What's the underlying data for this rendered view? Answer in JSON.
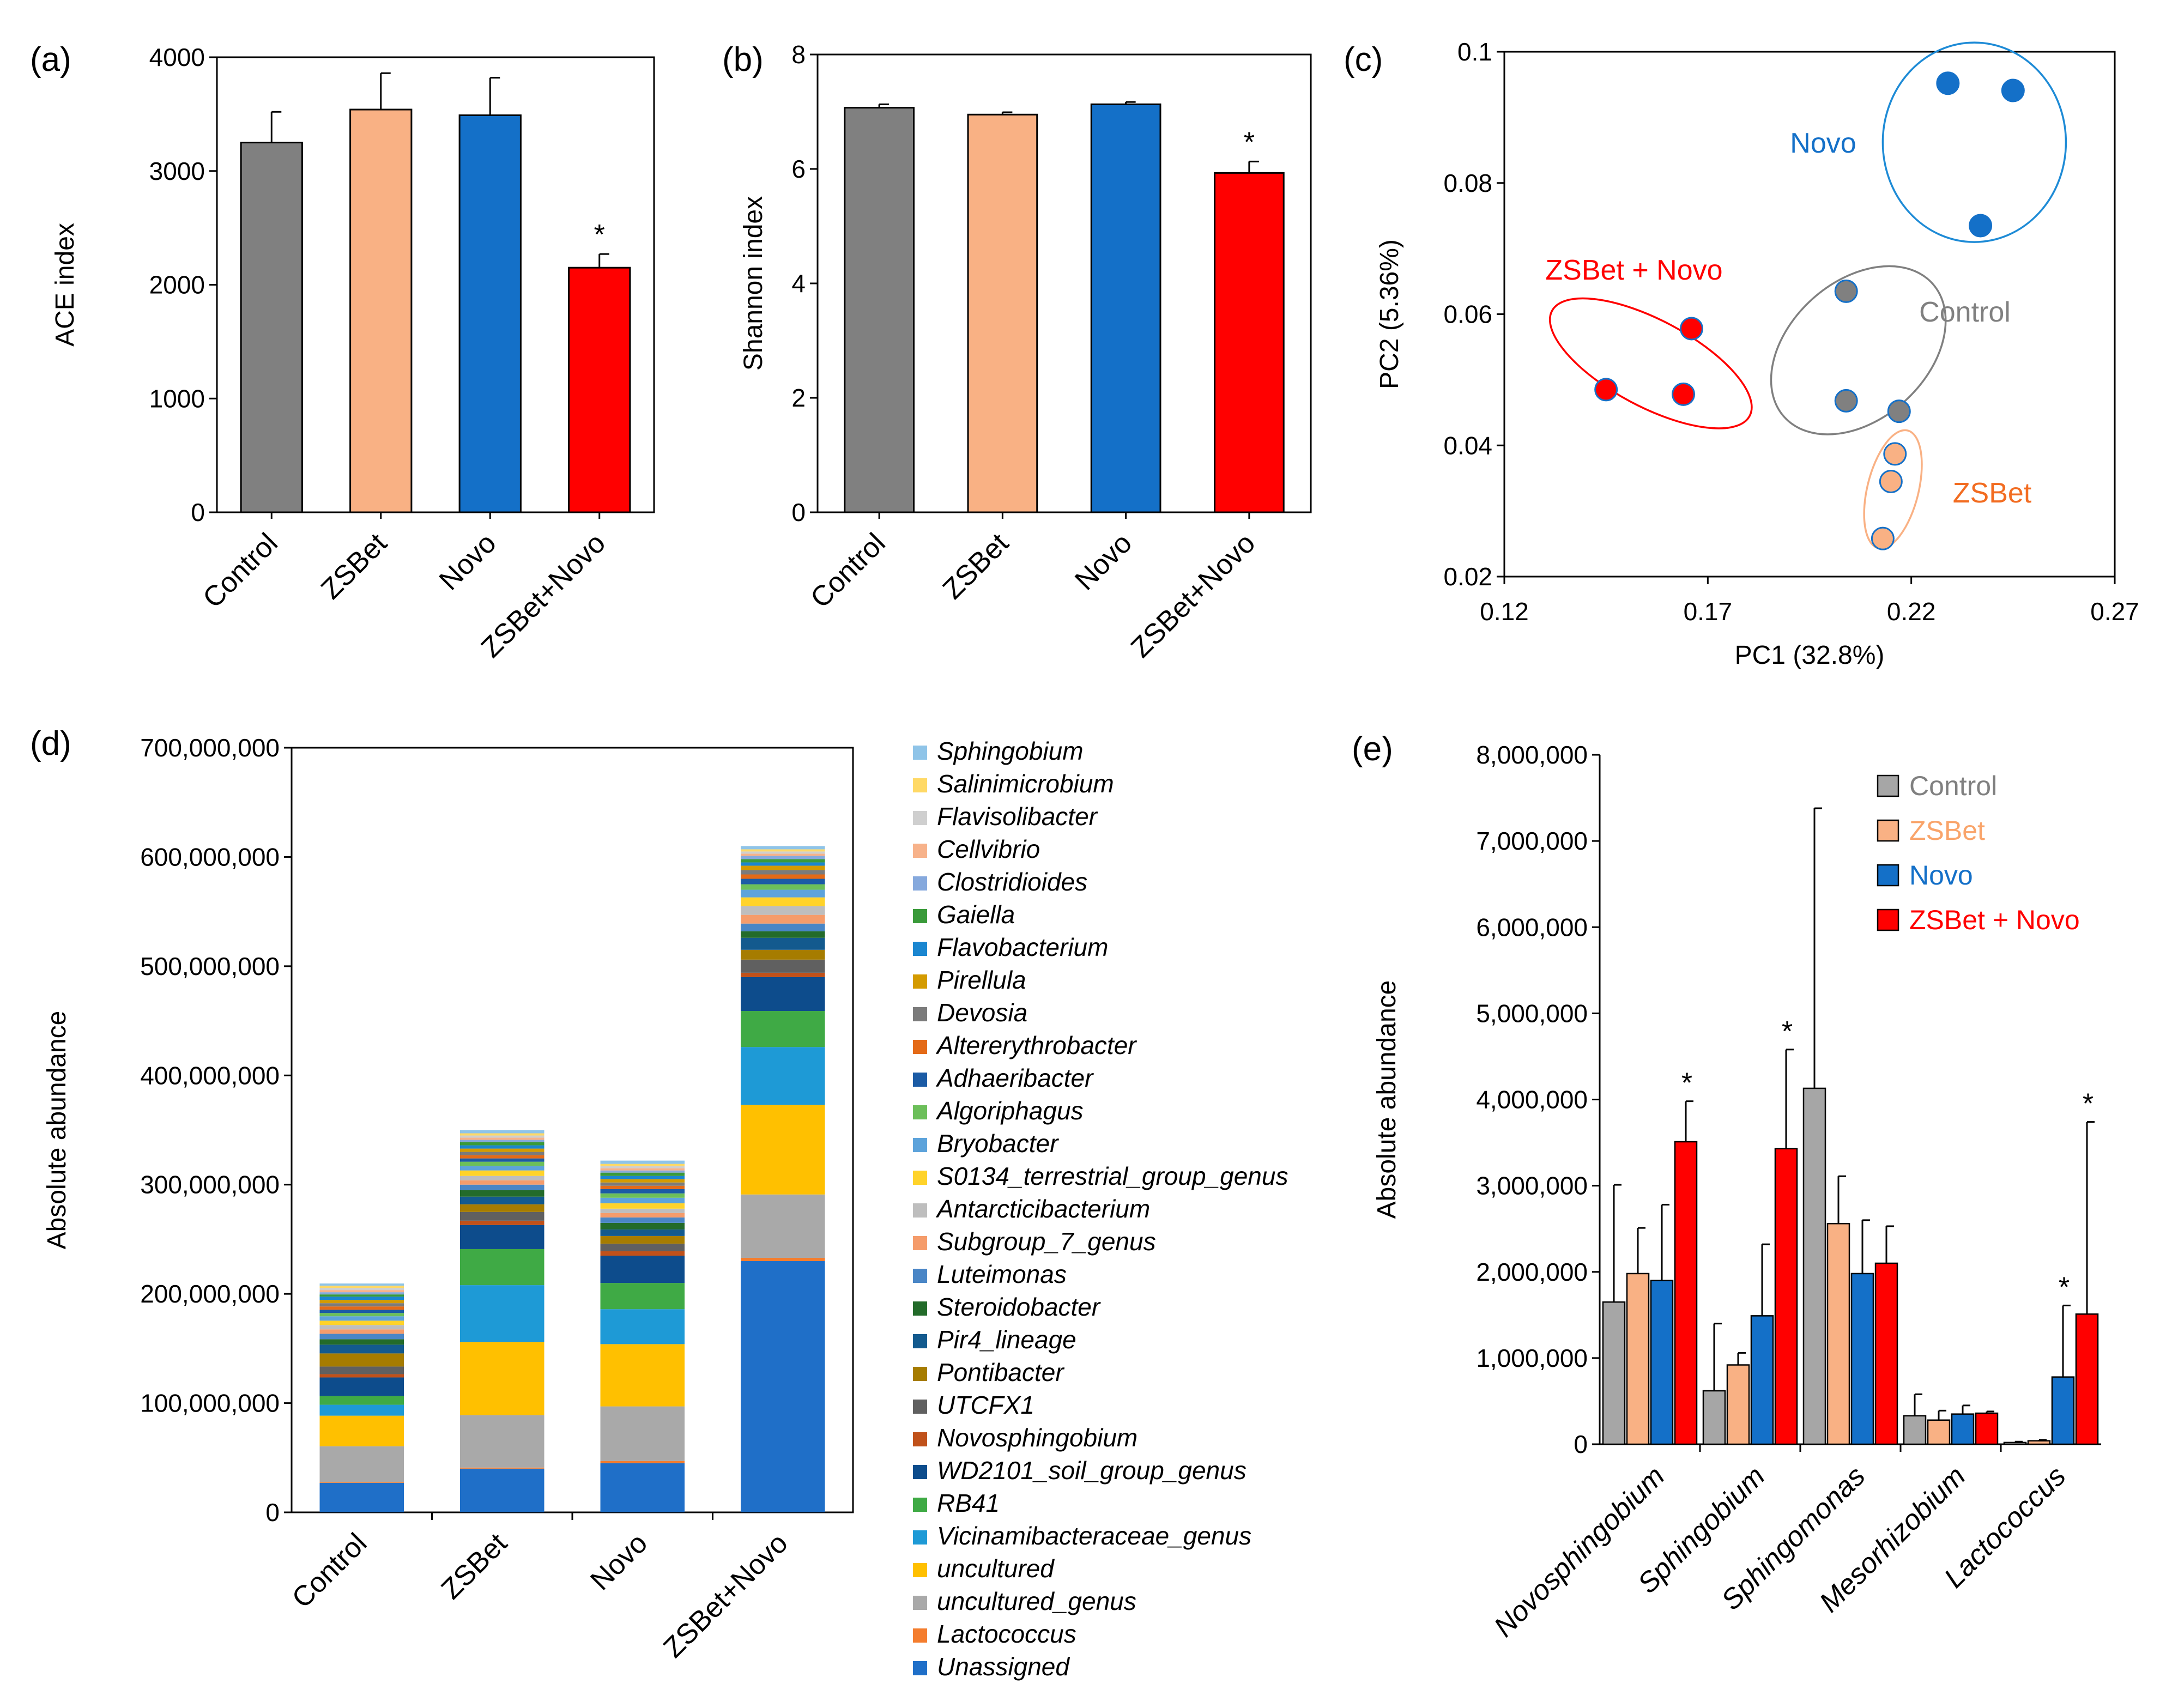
{
  "chart_data": [
    {
      "id": "a",
      "panel_label": "(a)",
      "type": "bar",
      "categories": [
        "Control",
        "ZSBet",
        "Novo",
        "ZSBet+Novo"
      ],
      "values": [
        3250,
        3540,
        3490,
        2150
      ],
      "errors": [
        270,
        320,
        330,
        120
      ],
      "colors": [
        "#808080",
        "#F9B184",
        "#1470C8",
        "#FF0000"
      ],
      "significance": [
        "",
        "",
        "",
        "*"
      ],
      "ylabel": "ACE index",
      "ylim": [
        0,
        4000
      ],
      "yticks": [
        "0",
        "1000",
        "2000",
        "3000",
        "4000"
      ]
    },
    {
      "id": "b",
      "panel_label": "(b)",
      "type": "bar",
      "categories": [
        "Control",
        "ZSBet",
        "Novo",
        "ZSBet+Novo"
      ],
      "values": [
        7.07,
        6.95,
        7.13,
        5.93
      ],
      "errors": [
        0.06,
        0.04,
        0.04,
        0.2
      ],
      "colors": [
        "#808080",
        "#F9B184",
        "#1470C8",
        "#FF0000"
      ],
      "significance": [
        "",
        "",
        "",
        "*"
      ],
      "ylabel": "Shannon index",
      "ylim": [
        0,
        8
      ],
      "yticks": [
        "0",
        "2",
        "4",
        "6",
        "8"
      ]
    },
    {
      "id": "c",
      "panel_label": "(c)",
      "type": "scatter",
      "xlabel": "PC1 (32.8%)",
      "ylabel": "PC2 (5.36%)",
      "xlim": [
        0.12,
        0.27
      ],
      "ylim": [
        0.02,
        0.1
      ],
      "xticks": [
        "0.12",
        "0.17",
        "0.22",
        "0.27"
      ],
      "yticks": [
        "0.02",
        "0.04",
        "0.06",
        "0.08",
        "0.1"
      ],
      "series": [
        {
          "name": "Novo",
          "color": "#1470C8",
          "edge": "#1470C8",
          "points": [
            [
              0.229,
              0.0952
            ],
            [
              0.245,
              0.0941
            ],
            [
              0.237,
              0.0735
            ]
          ],
          "ellipse": {
            "cx": 0.2355,
            "cy": 0.0862,
            "rx": 0.0225,
            "ry": 0.0152,
            "rot": 0
          }
        },
        {
          "name": "Control",
          "color": "#808080",
          "edge": "#1470C8",
          "points": [
            [
              0.204,
              0.0635
            ],
            [
              0.204,
              0.0468
            ],
            [
              0.217,
              0.0452
            ]
          ],
          "ellipse": {
            "cx": 0.207,
            "cy": 0.0545,
            "rx": 0.0245,
            "ry": 0.0105,
            "rot": 42
          }
        },
        {
          "name": "ZSBet",
          "color": "#F9B184",
          "edge": "#1470C8",
          "points": [
            [
              0.216,
              0.0387
            ],
            [
              0.215,
              0.0345
            ],
            [
              0.213,
              0.0258
            ]
          ],
          "ellipse": {
            "cx": 0.2155,
            "cy": 0.0333,
            "rx": 0.0149,
            "ry": 0.0039,
            "rot": 76
          }
        },
        {
          "name": "ZSBet + Novo",
          "color": "#FF0000",
          "edge": "#1470C8",
          "points": [
            [
              0.145,
              0.0485
            ],
            [
              0.164,
              0.0478
            ],
            [
              0.166,
              0.0578
            ]
          ],
          "ellipse": {
            "cx": 0.156,
            "cy": 0.0525,
            "rx": 0.0275,
            "ry": 0.0066,
            "rot": -28
          }
        }
      ]
    },
    {
      "id": "d",
      "panel_label": "(d)",
      "type": "bar",
      "stacked": true,
      "categories": [
        "Control",
        "ZSBet",
        "Novo",
        "ZSBet+Novo"
      ],
      "ylabel": "Absolute abundance",
      "ylim": [
        0,
        700000000
      ],
      "yticks": [
        "0",
        "100,000,000",
        "200,000,000",
        "300,000,000",
        "400,000,000",
        "500,000,000",
        "600,000,000",
        "700,000,000"
      ],
      "series": [
        {
          "name": "Unassigned",
          "color": "#1F6FC8",
          "values": [
            27000000,
            40000000,
            45000000,
            230000000
          ]
        },
        {
          "name": "Lactococcus",
          "color": "#F47D2E",
          "values": [
            500000,
            1000000,
            2000000,
            3000000
          ]
        },
        {
          "name": "uncultured_genus",
          "color": "#A9A9A9",
          "values": [
            33000000,
            48000000,
            50000000,
            58000000
          ]
        },
        {
          "name": "uncultured",
          "color": "#FFC000",
          "values": [
            28000000,
            67000000,
            57000000,
            82000000
          ]
        },
        {
          "name": "Vicinamibacteraceae_genus",
          "color": "#1E9AD6",
          "values": [
            10000000,
            52000000,
            32000000,
            53000000
          ]
        },
        {
          "name": "RB41",
          "color": "#3FAA45",
          "values": [
            8000000,
            33000000,
            24000000,
            33000000
          ]
        },
        {
          "name": "WD2101_soil_group_genus",
          "color": "#0D4C8C",
          "values": [
            17000000,
            22000000,
            25000000,
            31000000
          ]
        },
        {
          "name": "Novosphingobium",
          "color": "#C0511A",
          "values": [
            3000000,
            4000000,
            4000000,
            4000000
          ]
        },
        {
          "name": "UTCFX1",
          "color": "#606060",
          "values": [
            7000000,
            8000000,
            7000000,
            12000000
          ]
        },
        {
          "name": "Pontibacter",
          "color": "#A67C00",
          "values": [
            12000000,
            7000000,
            7000000,
            9000000
          ]
        },
        {
          "name": "Pir4_lineage",
          "color": "#135A8E",
          "values": [
            8000000,
            7000000,
            6000000,
            11000000
          ]
        },
        {
          "name": "Steroidobacter",
          "color": "#236B2A",
          "values": [
            5000000,
            6000000,
            6000000,
            6000000
          ]
        },
        {
          "name": "Luteimonas",
          "color": "#4A86C6",
          "values": [
            5000000,
            5000000,
            5000000,
            7000000
          ]
        },
        {
          "name": "Subgroup_7_genus",
          "color": "#F59C6B",
          "values": [
            4000000,
            4000000,
            4000000,
            8000000
          ]
        },
        {
          "name": "Antarcticibacterium",
          "color": "#BEBEBE",
          "values": [
            4000000,
            4000000,
            4000000,
            8000000
          ]
        },
        {
          "name": "S0134_terrestrial_group_genus",
          "color": "#FFD32A",
          "values": [
            4000000,
            5000000,
            5000000,
            8000000
          ]
        },
        {
          "name": "Bryobacter",
          "color": "#5DA3DB",
          "values": [
            4000000,
            4000000,
            5000000,
            7000000
          ]
        },
        {
          "name": "Algoriphagus",
          "color": "#6CBF5A",
          "values": [
            3000000,
            4000000,
            4000000,
            5000000
          ]
        },
        {
          "name": "Adhaeribacter",
          "color": "#1B5BA5",
          "values": [
            3000000,
            3000000,
            4000000,
            5000000
          ]
        },
        {
          "name": "Altererythrobacter",
          "color": "#E46A17",
          "values": [
            3000000,
            3000000,
            3000000,
            4000000
          ]
        },
        {
          "name": "Devosia",
          "color": "#7B7B7B",
          "values": [
            3000000,
            3000000,
            3000000,
            4000000
          ]
        },
        {
          "name": "Pirellula",
          "color": "#D49B00",
          "values": [
            3000000,
            3000000,
            3000000,
            4000000
          ]
        },
        {
          "name": "Flavobacterium",
          "color": "#1A86D0",
          "values": [
            3000000,
            3000000,
            3000000,
            3000000
          ]
        },
        {
          "name": "Gaiella",
          "color": "#3A9A3A",
          "values": [
            2000000,
            3000000,
            3000000,
            3000000
          ]
        },
        {
          "name": "Clostridioides",
          "color": "#86A9DD",
          "values": [
            2000000,
            2000000,
            2000000,
            3000000
          ]
        },
        {
          "name": "Cellvibrio",
          "color": "#F7B28A",
          "values": [
            2000000,
            2000000,
            2000000,
            2000000
          ]
        },
        {
          "name": "Flavisolibacter",
          "color": "#CFCFCF",
          "values": [
            2000000,
            2000000,
            2000000,
            2000000
          ]
        },
        {
          "name": "Salinimicrobium",
          "color": "#FFD966",
          "values": [
            2000000,
            2000000,
            2000000,
            2000000
          ]
        },
        {
          "name": "Sphingobium",
          "color": "#8FC4E8",
          "values": [
            2000000,
            3000000,
            3000000,
            3000000
          ]
        }
      ],
      "legend_order": [
        "Sphingobium",
        "Salinimicrobium",
        "Flavisolibacter",
        "Cellvibrio",
        "Clostridioides",
        "Gaiella",
        "Flavobacterium",
        "Pirellula",
        "Devosia",
        "Altererythrobacter",
        "Adhaeribacter",
        "Algoriphagus",
        "Bryobacter",
        "S0134_terrestrial_group_genus",
        "Antarcticibacterium",
        "Subgroup_7_genus",
        "Luteimonas",
        "Steroidobacter",
        "Pir4_lineage",
        "Pontibacter",
        "UTCFX1",
        "Novosphingobium",
        "WD2101_soil_group_genus",
        "RB41",
        "Vicinamibacteraceae_genus",
        "uncultured",
        "uncultured_genus",
        "Lactococcus",
        "Unassigned"
      ]
    },
    {
      "id": "e",
      "panel_label": "(e)",
      "type": "bar",
      "categories": [
        "Novosphingobium",
        "Sphingobium",
        "Sphingomonas",
        "Mesorhizobium",
        "Lactococcus"
      ],
      "ylabel": "Absolute abundance",
      "ylim": [
        0,
        8000000
      ],
      "yticks": [
        "0",
        "1,000,000",
        "2,000,000",
        "3,000,000",
        "4,000,000",
        "5,000,000",
        "6,000,000",
        "7,000,000",
        "8,000,000"
      ],
      "legend_position": "top-right",
      "series": [
        {
          "name": "Control",
          "color": "#A6A6A6",
          "text_color": "#808080",
          "values": [
            1650000,
            620000,
            4130000,
            330000,
            20000
          ],
          "errors": [
            1360000,
            780000,
            3250000,
            250000,
            10000
          ],
          "significance": [
            "",
            "",
            "",
            "",
            ""
          ]
        },
        {
          "name": "ZSBet",
          "color": "#F9B184",
          "text_color": "#F9A46A",
          "values": [
            1980000,
            920000,
            2560000,
            280000,
            40000
          ],
          "errors": [
            530000,
            140000,
            550000,
            110000,
            10000
          ],
          "significance": [
            "",
            "",
            "",
            "",
            ""
          ]
        },
        {
          "name": "Novo",
          "color": "#1470C8",
          "text_color": "#1470C8",
          "values": [
            1900000,
            1490000,
            1980000,
            350000,
            780000
          ],
          "errors": [
            880000,
            830000,
            620000,
            100000,
            830000
          ],
          "significance": [
            "",
            "",
            "",
            "",
            "*"
          ]
        },
        {
          "name": "ZSBet + Novo",
          "color": "#FF0000",
          "text_color": "#FF0000",
          "values": [
            3510000,
            3430000,
            2100000,
            360000,
            1510000
          ],
          "errors": [
            470000,
            1150000,
            430000,
            20000,
            2230000
          ],
          "significance": [
            "*",
            "*",
            "",
            "",
            "*"
          ]
        }
      ]
    }
  ]
}
